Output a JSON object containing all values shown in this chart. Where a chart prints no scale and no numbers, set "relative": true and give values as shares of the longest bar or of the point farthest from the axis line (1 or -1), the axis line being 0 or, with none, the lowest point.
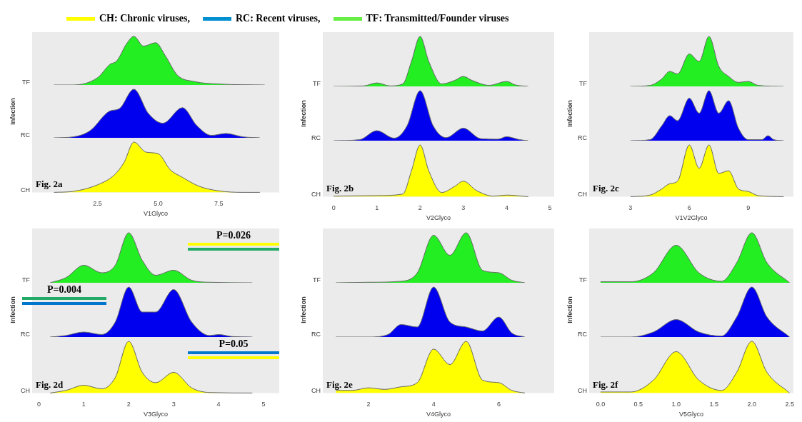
{
  "chart_data": [
    {
      "type": "other",
      "annotations": [
        "CH: Chronic viruses,",
        "RC:  Recent viruses,",
        "TF: Transmitted/Founder viruses"
      ]
    },
    {
      "type": "area",
      "relative": true,
      "ylabel": "TF",
      "color": "#22ee22",
      "xlim": [
        -0.2,
        10
      ],
      "xticks": [
        2.5,
        5.0,
        7.5
      ],
      "tick_labels": false,
      "x": [
        0.7,
        1.5,
        2.5,
        3,
        3.3,
        3.7,
        4,
        4.4,
        4.9,
        5.3,
        5.8,
        6.5,
        7.5,
        9.4
      ],
      "values": [
        0,
        0,
        0.15,
        0.42,
        0.5,
        0.85,
        1,
        0.8,
        0.87,
        0.6,
        0.2,
        0.07,
        0.02,
        0
      ]
    },
    {
      "type": "area",
      "relative": true,
      "ylabel": "RC",
      "color": "#0000ee",
      "xlim": [
        -0.2,
        10
      ],
      "xticks": [
        2.5,
        5.0,
        7.5
      ],
      "tick_labels": false,
      "annotations": [
        "Infection"
      ],
      "x": [
        0.7,
        1.5,
        2.2,
        3,
        3.4,
        4,
        4.6,
        5.2,
        6,
        6.6,
        7.2,
        7.8,
        8.5,
        9.2
      ],
      "values": [
        0,
        0.02,
        0.15,
        0.55,
        0.6,
        1,
        0.5,
        0.3,
        0.62,
        0.25,
        0.05,
        0.09,
        0.02,
        0
      ]
    },
    {
      "type": "area",
      "relative": true,
      "ylabel": "CH",
      "color": "#ffff00",
      "xlim": [
        -0.2,
        10
      ],
      "xticks": [
        {
          "value": 2.5,
          "label": "2.5"
        },
        {
          "value": 5.0,
          "label": "5.0"
        },
        {
          "value": 7.5,
          "label": "7.5"
        }
      ],
      "tick_labels": "x",
      "xlabel": "V1Glyco",
      "annotations": [
        "Fig. 2a"
      ],
      "x": [
        0.7,
        1.5,
        2.5,
        3.2,
        3.6,
        4,
        4.5,
        5,
        5.5,
        6,
        6.7,
        7.5,
        8.5,
        9.2
      ],
      "values": [
        0,
        0.02,
        0.15,
        0.35,
        0.6,
        1,
        0.8,
        0.77,
        0.45,
        0.3,
        0.12,
        0.03,
        0,
        0
      ]
    },
    {
      "type": "area",
      "relative": true,
      "ylabel": "TF",
      "color": "#22ee22",
      "xlim": [
        -0.25,
        5.1
      ],
      "xticks": [
        0,
        1,
        2,
        3,
        4,
        5
      ],
      "tick_labels": false,
      "x": [
        0,
        0.7,
        1,
        1.3,
        1.6,
        1.8,
        2,
        2.2,
        2.5,
        2.8,
        3,
        3.2,
        3.6,
        4,
        4.2,
        4.5
      ],
      "values": [
        0,
        0.01,
        0.07,
        0.01,
        0.05,
        0.5,
        1,
        0.5,
        0.05,
        0.12,
        0.2,
        0.12,
        0.02,
        0.1,
        0.03,
        0
      ]
    },
    {
      "type": "area",
      "relative": true,
      "ylabel": "RC",
      "color": "#0000ee",
      "xlim": [
        -0.25,
        5.1
      ],
      "xticks": [
        0,
        1,
        2,
        3,
        4,
        5
      ],
      "tick_labels": false,
      "annotations": [
        "Infection"
      ],
      "x": [
        0,
        0.6,
        1,
        1.4,
        1.7,
        2,
        2.3,
        2.6,
        3,
        3.4,
        3.8,
        4,
        4.3,
        4.5
      ],
      "values": [
        0,
        0.02,
        0.2,
        0.05,
        0.3,
        1,
        0.3,
        0.06,
        0.25,
        0.04,
        0.03,
        0.08,
        0.02,
        0
      ]
    },
    {
      "type": "area",
      "relative": true,
      "ylabel": "CH",
      "color": "#ffff00",
      "xlim": [
        -0.25,
        5.1
      ],
      "xticks": [
        0,
        1,
        2,
        3,
        4,
        5
      ],
      "tick_labels": "x",
      "xlabel": "V2Glyco",
      "annotations": [
        "Fig. 2b"
      ],
      "x": [
        0,
        1,
        1.6,
        1.8,
        2,
        2.2,
        2.5,
        2.8,
        3,
        3.3,
        3.7,
        4,
        4.5
      ],
      "values": [
        0.01,
        0.02,
        0.05,
        0.5,
        1,
        0.5,
        0.08,
        0.2,
        0.3,
        0.12,
        0.01,
        0.03,
        0
      ]
    },
    {
      "type": "area",
      "relative": true,
      "ylabel": "TF",
      "color": "#22ee22",
      "xlim": [
        0.9,
        11.3
      ],
      "xticks": [
        3,
        6,
        9
      ],
      "tick_labels": false,
      "x": [
        3,
        4,
        4.6,
        5,
        5.4,
        6,
        6.5,
        7,
        7.5,
        8,
        8.5,
        9,
        9.5,
        10.8
      ],
      "values": [
        0,
        0.02,
        0.15,
        0.3,
        0.25,
        0.65,
        0.5,
        1,
        0.4,
        0.2,
        0.08,
        0.1,
        0.02,
        0
      ]
    },
    {
      "type": "area",
      "relative": true,
      "ylabel": "RC",
      "color": "#0000ee",
      "xlim": [
        0.9,
        11.3
      ],
      "xticks": [
        3,
        6,
        9
      ],
      "tick_labels": false,
      "annotations": [
        "Infection"
      ],
      "x": [
        3,
        4,
        4.6,
        5,
        5.4,
        6,
        6.5,
        7,
        7.5,
        8,
        8.5,
        9,
        9.7,
        10,
        10.3,
        10.8
      ],
      "values": [
        0,
        0.02,
        0.3,
        0.5,
        0.4,
        0.85,
        0.55,
        1,
        0.55,
        0.8,
        0.25,
        0.02,
        0.02,
        0.1,
        0.02,
        0
      ]
    },
    {
      "type": "area",
      "relative": true,
      "ylabel": "CH",
      "color": "#ffff00",
      "xlim": [
        0.9,
        11.3
      ],
      "xticks": [
        3,
        6,
        9
      ],
      "tick_labels": "x",
      "xlabel": "V1V2Glyco",
      "annotations": [
        "Fig. 2c"
      ],
      "x": [
        3,
        4,
        4.6,
        5,
        5.4,
        6,
        6.5,
        7,
        7.5,
        8,
        8.5,
        9,
        9.5,
        10.8
      ],
      "values": [
        0,
        0.03,
        0.15,
        0.25,
        0.3,
        1,
        0.55,
        1,
        0.45,
        0.5,
        0.15,
        0.1,
        0.02,
        0
      ]
    },
    {
      "type": "area",
      "relative": true,
      "ylabel": "TF",
      "color": "#22ee22",
      "xlim": [
        -0.15,
        5.35
      ],
      "xticks": [
        0,
        1,
        2,
        3,
        4,
        5
      ],
      "tick_labels": false,
      "annotations": [
        "P=0.026"
      ],
      "x": [
        0.25,
        0.6,
        1,
        1.4,
        1.7,
        2,
        2.3,
        2.6,
        3,
        3.4,
        3.8,
        4.75
      ],
      "values": [
        0,
        0.1,
        0.35,
        0.2,
        0.35,
        1,
        0.45,
        0.15,
        0.25,
        0.05,
        0.01,
        0
      ]
    },
    {
      "type": "area",
      "relative": true,
      "ylabel": "RC",
      "color": "#0000ee",
      "xlim": [
        -0.15,
        5.35
      ],
      "xticks": [
        0,
        1,
        2,
        3,
        4,
        5
      ],
      "tick_labels": false,
      "annotations": [
        "Infection",
        "P=0.004"
      ],
      "x": [
        0.25,
        0.6,
        1,
        1.4,
        1.7,
        2,
        2.3,
        2.6,
        3,
        3.4,
        3.8,
        4,
        4.3,
        4.75
      ],
      "values": [
        0,
        0.03,
        0.1,
        0.05,
        0.3,
        1,
        0.5,
        0.5,
        0.95,
        0.3,
        0.03,
        0.05,
        0.01,
        0
      ]
    },
    {
      "type": "area",
      "relative": true,
      "ylabel": "CH",
      "color": "#ffff00",
      "xlim": [
        -0.15,
        5.35
      ],
      "xticks": [
        0,
        1,
        2,
        3,
        4,
        5
      ],
      "tick_labels": "x",
      "xlabel": "V3Glyco",
      "annotations": [
        "Fig. 2d",
        "P=0.05"
      ],
      "x": [
        0.25,
        0.6,
        1,
        1.4,
        1.7,
        2,
        2.3,
        2.6,
        3,
        3.4,
        3.8,
        4.75
      ],
      "values": [
        0,
        0.05,
        0.15,
        0.08,
        0.3,
        1,
        0.4,
        0.2,
        0.4,
        0.1,
        0.01,
        0
      ]
    },
    {
      "type": "area",
      "relative": true,
      "ylabel": "TF",
      "color": "#22ee22",
      "xlim": [
        0.6,
        7.7
      ],
      "xticks": [
        2,
        4,
        6
      ],
      "tick_labels": false,
      "x": [
        1,
        2,
        3,
        3.5,
        4,
        4.5,
        5,
        5.5,
        6,
        6.4,
        6.8
      ],
      "values": [
        0,
        0.01,
        0.03,
        0.2,
        0.95,
        0.55,
        1,
        0.25,
        0.2,
        0.05,
        0
      ]
    },
    {
      "type": "area",
      "relative": true,
      "ylabel": "RC",
      "color": "#0000ee",
      "xlim": [
        0.6,
        7.7
      ],
      "xticks": [
        2,
        4,
        6
      ],
      "tick_labels": false,
      "annotations": [
        "Infection"
      ],
      "x": [
        1,
        2,
        2.6,
        3,
        3.5,
        4,
        4.5,
        5,
        5.5,
        6,
        6.4,
        6.8
      ],
      "values": [
        0,
        0,
        0.05,
        0.25,
        0.2,
        1,
        0.3,
        0.2,
        0.12,
        0.4,
        0.08,
        0
      ]
    },
    {
      "type": "area",
      "relative": true,
      "ylabel": "CH",
      "color": "#ffff00",
      "xlim": [
        0.6,
        7.7
      ],
      "xticks": [
        2,
        4,
        6
      ],
      "tick_labels": "x",
      "xlabel": "V4Glyco",
      "annotations": [
        "Fig. 2e"
      ],
      "x": [
        1,
        1.5,
        2,
        2.5,
        3,
        3.5,
        4,
        4.5,
        5,
        5.5,
        6,
        6.4,
        6.8
      ],
      "values": [
        0.05,
        0.05,
        0.1,
        0.07,
        0.12,
        0.2,
        0.85,
        0.55,
        1,
        0.25,
        0.2,
        0.05,
        0
      ]
    },
    {
      "type": "area",
      "relative": true,
      "ylabel": "TF",
      "color": "#22ee22",
      "xlim": [
        -0.15,
        2.55
      ],
      "xticks": [
        0.0,
        0.5,
        1.0,
        1.5,
        2.0,
        2.5
      ],
      "tick_labels": false,
      "x": [
        0,
        0.4,
        0.7,
        1,
        1.3,
        1.6,
        1.8,
        2,
        2.2,
        2.5
      ],
      "values": [
        0.02,
        0.02,
        0.2,
        0.75,
        0.2,
        0.03,
        0.4,
        1,
        0.4,
        0
      ]
    },
    {
      "type": "area",
      "relative": true,
      "ylabel": "RC",
      "color": "#0000ee",
      "xlim": [
        -0.15,
        2.55
      ],
      "xticks": [
        0.0,
        0.5,
        1.0,
        1.5,
        2.0,
        2.5
      ],
      "tick_labels": false,
      "annotations": [
        "Infection"
      ],
      "x": [
        0,
        0.4,
        0.7,
        1,
        1.3,
        1.6,
        1.8,
        2,
        2.2,
        2.5
      ],
      "values": [
        0,
        0,
        0.1,
        0.35,
        0.1,
        0.02,
        0.4,
        1,
        0.4,
        0
      ]
    },
    {
      "type": "area",
      "relative": true,
      "ylabel": "CH",
      "color": "#ffff00",
      "xlim": [
        -0.15,
        2.55
      ],
      "xticks": [
        {
          "value": 0.0,
          "label": "0.0"
        },
        {
          "value": 0.5,
          "label": "0.5"
        },
        {
          "value": 1.0,
          "label": "1.0"
        },
        {
          "value": 1.5,
          "label": "1.5"
        },
        {
          "value": 2.0,
          "label": "2.0"
        },
        {
          "value": 2.5,
          "label": "2.5"
        }
      ],
      "tick_labels": "x",
      "xlabel": "V5Glyco",
      "annotations": [
        "Fig. 2f"
      ],
      "x": [
        0,
        0.4,
        0.7,
        1,
        1.3,
        1.6,
        1.8,
        2,
        2.2,
        2.5
      ],
      "values": [
        0.02,
        0.02,
        0.25,
        0.8,
        0.25,
        0.05,
        0.4,
        1,
        0.4,
        0
      ]
    }
  ]
}
